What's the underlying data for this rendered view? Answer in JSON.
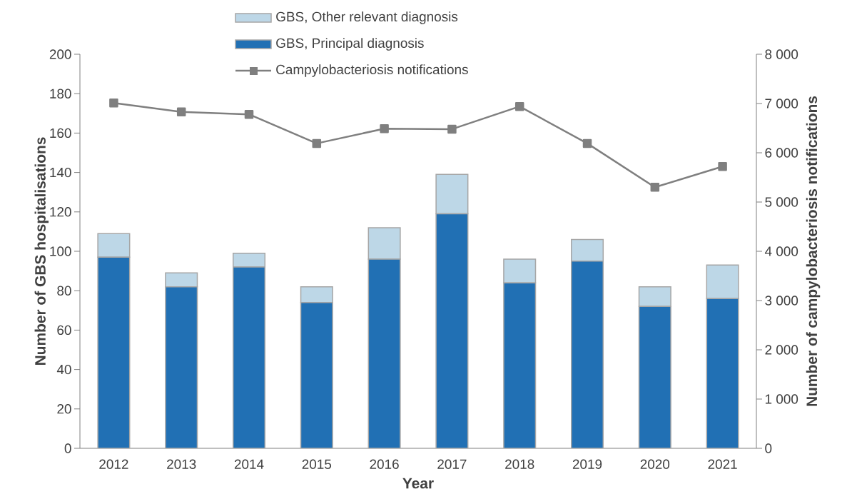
{
  "chart_data": {
    "type": "bar",
    "stacked": true,
    "xlabel": "Year",
    "ylabel": "Number of GBS hospitalisations",
    "y2label": "Number of campylobacteriosis notifications",
    "categories": [
      "2012",
      "2013",
      "2014",
      "2015",
      "2016",
      "2017",
      "2018",
      "2019",
      "2020",
      "2021"
    ],
    "series": [
      {
        "name": "GBS, Principal diagnosis",
        "color": "#2170b4",
        "values": [
          97,
          82,
          92,
          74,
          96,
          119,
          84,
          95,
          72,
          76
        ]
      },
      {
        "name": "GBS, Other relevant diagnosis",
        "color": "#bdd7e7",
        "values": [
          12,
          7,
          7,
          8,
          16,
          20,
          12,
          11,
          10,
          17
        ]
      },
      {
        "name": "Campylobacteriosis notifications",
        "type": "line",
        "axis": "y2",
        "color": "#7f7f7f",
        "marker": "square",
        "values": [
          7010,
          6830,
          6780,
          6190,
          6490,
          6480,
          6940,
          6190,
          5300,
          5720
        ]
      }
    ],
    "ylim": [
      0,
      200
    ],
    "yticks": [
      0,
      20,
      40,
      60,
      80,
      100,
      120,
      140,
      160,
      180,
      200
    ],
    "y2lim": [
      0,
      8000
    ],
    "y2ticks": [
      {
        "value": 0,
        "label": "0"
      },
      {
        "value": 1000,
        "label": "1 000"
      },
      {
        "value": 2000,
        "label": "2 000"
      },
      {
        "value": 3000,
        "label": "3 000"
      },
      {
        "value": 4000,
        "label": "4 000"
      },
      {
        "value": 5000,
        "label": "5 000"
      },
      {
        "value": 6000,
        "label": "6 000"
      },
      {
        "value": 7000,
        "label": "7 000"
      },
      {
        "value": 8000,
        "label": "8 000"
      }
    ],
    "grid": false,
    "legend": "top"
  }
}
